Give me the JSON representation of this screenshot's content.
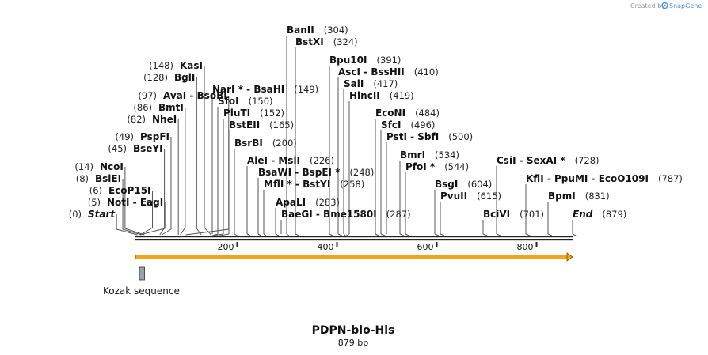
{
  "credit": {
    "prefix": "Created by",
    "brand": "SnapGene"
  },
  "map": {
    "name": "PDPN-bio-His",
    "length_label": "879 bp",
    "length": 879
  },
  "axis_ticks": [
    "200",
    "400",
    "600",
    "800"
  ],
  "features": [
    {
      "name": "Kozak sequence"
    }
  ],
  "sites": [
    {
      "parts": [
        "Start"
      ],
      "seps": [],
      "position": "(0)",
      "pos_value": 0,
      "italic": true
    },
    {
      "parts": [
        "NotI",
        "EagI"
      ],
      "seps": [
        "-"
      ],
      "position": "(5)",
      "pos_value": 5
    },
    {
      "parts": [
        "EcoP15I"
      ],
      "seps": [],
      "position": "(6)",
      "pos_value": 6
    },
    {
      "parts": [
        "BsiEI"
      ],
      "seps": [],
      "position": "(8)",
      "pos_value": 8
    },
    {
      "parts": [
        "NcoI"
      ],
      "seps": [],
      "position": "(14)",
      "pos_value": 14
    },
    {
      "parts": [
        "BseYI"
      ],
      "seps": [],
      "position": "(45)",
      "pos_value": 45
    },
    {
      "parts": [
        "PspFI"
      ],
      "seps": [],
      "position": "(49)",
      "pos_value": 49
    },
    {
      "parts": [
        "NheI"
      ],
      "seps": [],
      "position": "(82)",
      "pos_value": 82
    },
    {
      "parts": [
        "BmtI"
      ],
      "seps": [],
      "position": "(86)",
      "pos_value": 86
    },
    {
      "parts": [
        "AvaI",
        "BsoBI"
      ],
      "seps": [
        "-"
      ],
      "position": "(97)",
      "pos_value": 97
    },
    {
      "parts": [
        "BglI"
      ],
      "seps": [],
      "position": "(128)",
      "pos_value": 128
    },
    {
      "parts": [
        "KasI"
      ],
      "seps": [],
      "position": "(148)",
      "pos_value": 148
    },
    {
      "parts": [
        "NarI *",
        "BsaHI"
      ],
      "seps": [
        "-"
      ],
      "position": "(149)",
      "pos_value": 149
    },
    {
      "parts": [
        "SfoI"
      ],
      "seps": [],
      "position": "(150)",
      "pos_value": 150
    },
    {
      "parts": [
        "PluTI"
      ],
      "seps": [],
      "position": "(152)",
      "pos_value": 152
    },
    {
      "parts": [
        "BstEII"
      ],
      "seps": [],
      "position": "(165)",
      "pos_value": 165
    },
    {
      "parts": [
        "BsrBI"
      ],
      "seps": [],
      "position": "(200)",
      "pos_value": 200
    },
    {
      "parts": [
        "AleI",
        "MslI"
      ],
      "seps": [
        "-"
      ],
      "position": "(226)",
      "pos_value": 226
    },
    {
      "parts": [
        "BsaWI",
        "BspEI *"
      ],
      "seps": [
        "-"
      ],
      "position": "(248)",
      "pos_value": 248
    },
    {
      "parts": [
        "MflI *",
        "BstYI"
      ],
      "seps": [
        "-"
      ],
      "position": "(258)",
      "pos_value": 258
    },
    {
      "parts": [
        "ApaLI"
      ],
      "seps": [],
      "position": "(283)",
      "pos_value": 283
    },
    {
      "parts": [
        "BaeGI",
        "Bme1580I"
      ],
      "seps": [
        "-"
      ],
      "position": "(287)",
      "pos_value": 287
    },
    {
      "parts": [
        "BanII"
      ],
      "seps": [],
      "position": "(304)",
      "pos_value": 304
    },
    {
      "parts": [
        "BstXI"
      ],
      "seps": [],
      "position": "(324)",
      "pos_value": 324
    },
    {
      "parts": [
        "Bpu10I"
      ],
      "seps": [],
      "position": "(391)",
      "pos_value": 391
    },
    {
      "parts": [
        "AscI",
        "BssHII"
      ],
      "seps": [
        "-"
      ],
      "position": "(410)",
      "pos_value": 410
    },
    {
      "parts": [
        "SalI"
      ],
      "seps": [],
      "position": "(417)",
      "pos_value": 417
    },
    {
      "parts": [
        "HincII"
      ],
      "seps": [],
      "position": "(419)",
      "pos_value": 419
    },
    {
      "parts": [
        "EcoNI"
      ],
      "seps": [],
      "position": "(484)",
      "pos_value": 484
    },
    {
      "parts": [
        "SfcI"
      ],
      "seps": [],
      "position": "(496)",
      "pos_value": 496
    },
    {
      "parts": [
        "PstI",
        "SbfI"
      ],
      "seps": [
        "-"
      ],
      "position": "(500)",
      "pos_value": 500
    },
    {
      "parts": [
        "BmrI"
      ],
      "seps": [],
      "position": "(534)",
      "pos_value": 534
    },
    {
      "parts": [
        "PfoI *"
      ],
      "seps": [],
      "position": "(544)",
      "pos_value": 544
    },
    {
      "parts": [
        "BsgI"
      ],
      "seps": [],
      "position": "(604)",
      "pos_value": 604
    },
    {
      "parts": [
        "PvuII"
      ],
      "seps": [],
      "position": "(615)",
      "pos_value": 615
    },
    {
      "parts": [
        "BciVI"
      ],
      "seps": [],
      "position": "(701)",
      "pos_value": 701
    },
    {
      "parts": [
        "CsiI",
        "SexAI *"
      ],
      "seps": [
        "-"
      ],
      "position": "(728)",
      "pos_value": 728
    },
    {
      "parts": [
        "KflI",
        "PpuMI",
        "EcoO109I"
      ],
      "seps": [
        "-",
        "-"
      ],
      "position": "(787)",
      "pos_value": 787
    },
    {
      "parts": [
        "BpmI"
      ],
      "seps": [],
      "position": "(831)",
      "pos_value": 831
    },
    {
      "parts": [
        "End"
      ],
      "seps": [],
      "position": "(879)",
      "pos_value": 879,
      "italic": true
    }
  ]
}
